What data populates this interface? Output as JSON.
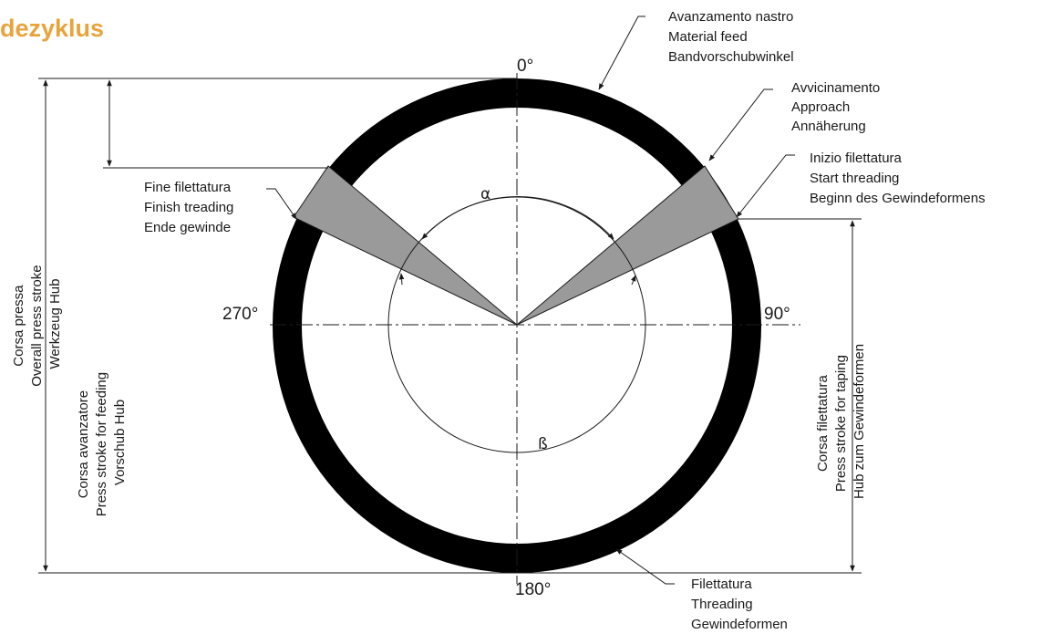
{
  "title": "dezyklus",
  "angles": {
    "top": "0°",
    "right": "90°",
    "bottom": "180°",
    "left": "270°",
    "alpha": "α",
    "beta": "ß"
  },
  "labels": {
    "material_feed": [
      "Avanzamento nastro",
      "Material feed",
      "Bandvorschubwinkel"
    ],
    "approach": [
      "Avvicinamento",
      "Approach",
      "Annäherung"
    ],
    "start_threading": [
      "Inizio filettatura",
      "Start threading",
      "Beginn des Gewindeformens"
    ],
    "finish_threading": [
      "Fine filettatura",
      "Finish treading",
      "Ende gewinde"
    ],
    "threading": [
      "Filettatura",
      "Threading",
      "Gewindeformen"
    ],
    "overall_press_stroke": [
      "Corsa pressa",
      "Overall press stroke",
      "Werkzeug Hub"
    ],
    "feeding_stroke": [
      "Corsa avanzatore",
      "Press stroke for feeding",
      "Vorschub Hub"
    ],
    "taping_stroke": [
      "Corsa filettatura",
      "Press stroke for taping",
      "Hub zum Gewindeformen"
    ]
  },
  "colors": {
    "ring": "#000000",
    "sector": "#9a9a9a",
    "title": "#e8a33c"
  }
}
